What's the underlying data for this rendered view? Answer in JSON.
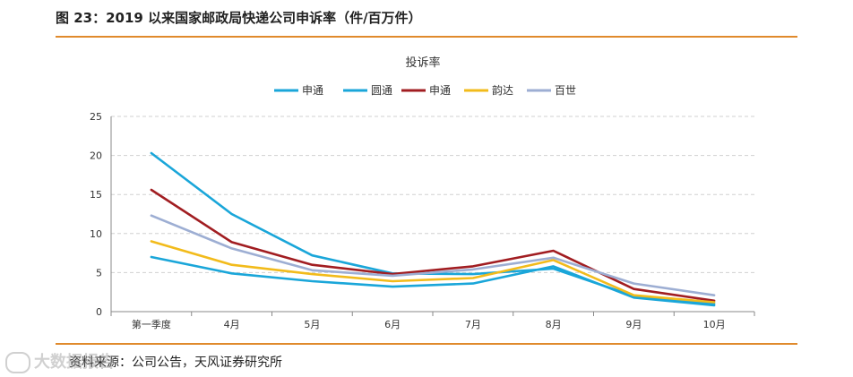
{
  "page": {
    "figure_title": "图 23：2019 以来国家邮政局快递公司申诉率（件/百万件）",
    "source": "资料来源：公司公告，天风证券研究所",
    "watermark": "大数据报告"
  },
  "chart_data": {
    "type": "line",
    "title": "投诉率",
    "categories": [
      "第一季度",
      "4月",
      "5月",
      "6月",
      "7月",
      "8月",
      "9月",
      "10月"
    ],
    "ylim": [
      0,
      25
    ],
    "yticks": [
      0,
      5,
      10,
      15,
      20,
      25
    ],
    "grid": true,
    "legend_position": "top",
    "series": [
      {
        "name": "申通",
        "color": "#1aa6d9",
        "values": [
          20.3,
          12.5,
          7.2,
          4.9,
          4.8,
          5.5,
          2.0,
          1.0
        ]
      },
      {
        "name": "圆通",
        "color": "#1aa6d9",
        "values": [
          7.0,
          4.9,
          3.9,
          3.2,
          3.6,
          5.8,
          1.8,
          0.8
        ]
      },
      {
        "name": "申通",
        "color": "#a11d21",
        "values": [
          15.6,
          8.9,
          6.0,
          4.8,
          5.8,
          7.8,
          2.9,
          1.4
        ]
      },
      {
        "name": "韵达",
        "color": "#f2bb1b",
        "values": [
          9.0,
          6.0,
          4.8,
          3.9,
          4.3,
          6.6,
          2.1,
          1.2
        ]
      },
      {
        "name": "百世",
        "color": "#9daed3",
        "values": [
          12.3,
          8.1,
          5.3,
          4.6,
          5.4,
          6.9,
          3.6,
          2.1
        ]
      }
    ]
  }
}
